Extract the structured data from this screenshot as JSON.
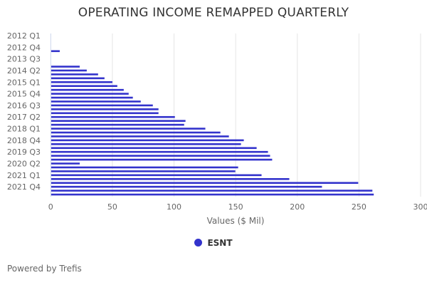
{
  "chart_data": {
    "type": "bar",
    "orientation": "horizontal",
    "title": "OPERATING INCOME REMAPPED QUARTERLY",
    "xlabel": "Values ($ Mil)",
    "ylabel": "",
    "xlim": [
      0,
      300
    ],
    "x_ticks": [
      0,
      50,
      100,
      150,
      200,
      250,
      300
    ],
    "grid": true,
    "legend_position": "bottom-center",
    "categories": [
      "2012 Q1",
      "2012 Q2",
      "2012 Q3",
      "2012 Q4",
      "2013 Q1",
      "2013 Q2",
      "2013 Q3",
      "2013 Q4",
      "2014 Q1",
      "2014 Q2",
      "2014 Q3",
      "2014 Q4",
      "2015 Q1",
      "2015 Q2",
      "2015 Q3",
      "2015 Q4",
      "2016 Q1",
      "2016 Q2",
      "2016 Q3",
      "2016 Q4",
      "2017 Q1",
      "2017 Q2",
      "2017 Q3",
      "2017 Q4",
      "2018 Q1",
      "2018 Q2",
      "2018 Q3",
      "2018 Q4",
      "2019 Q1",
      "2019 Q2",
      "2019 Q3",
      "2019 Q4",
      "2020 Q1",
      "2020 Q2",
      "2020 Q3",
      "2020 Q4",
      "2021 Q1",
      "2021 Q2",
      "2021 Q3",
      "2021 Q4",
      "2022 Q1",
      "2022 Q2"
    ],
    "category_tick_labels": [
      "2012 Q1",
      "2012 Q4",
      "2013 Q3",
      "2014 Q2",
      "2015 Q1",
      "2015 Q4",
      "2016 Q3",
      "2017 Q2",
      "2018 Q1",
      "2018 Q4",
      "2019 Q3",
      "2020 Q2",
      "2021 Q1",
      "2021 Q4"
    ],
    "series": [
      {
        "name": "ESNT",
        "color": "#3333cc",
        "values": [
          null,
          null,
          null,
          null,
          7.3,
          null,
          null,
          null,
          23.5,
          29.2,
          38.4,
          43.6,
          50.0,
          54.0,
          59.2,
          63.2,
          66.6,
          73.0,
          82.8,
          87.4,
          87.4,
          100.7,
          109.3,
          108.2,
          125.4,
          137.6,
          144.5,
          156.6,
          154.3,
          167.0,
          176.2,
          177.9,
          179.6,
          23.5,
          152.0,
          149.7,
          171.0,
          193.5,
          249.4,
          220.0,
          260.9,
          262.0
        ]
      }
    ]
  },
  "colors": {
    "bar": "#3333cc",
    "grid": "#e6e6e6",
    "axis": "#ccd6eb",
    "text": "#333333",
    "muted": "#666666"
  },
  "legend": {
    "label": "ESNT",
    "marker_icon": "circle-marker"
  },
  "footer": {
    "text": "Powered by Trefis"
  }
}
